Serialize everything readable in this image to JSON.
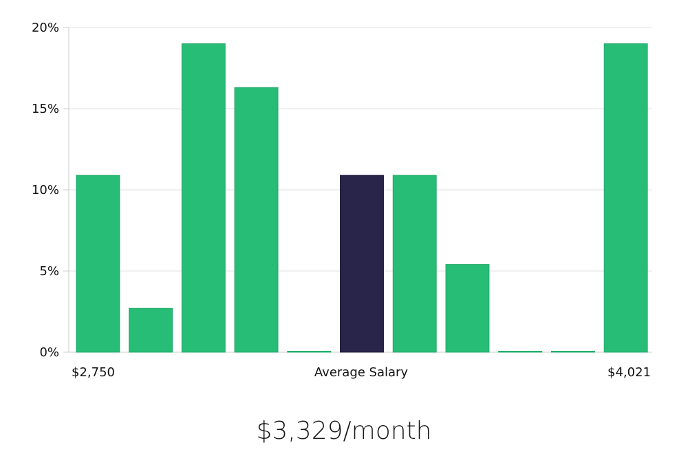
{
  "colors": {
    "bar": "#28bd77",
    "highlight": "#28244a",
    "grid": "#e2e2e2",
    "axis": "#cccccc",
    "text": "#111111"
  },
  "chart_data": {
    "type": "bar",
    "ylim": [
      0,
      20
    ],
    "yticks": [
      0,
      5,
      10,
      15,
      20
    ],
    "ytick_labels": [
      "0%",
      "5%",
      "10%",
      "15%",
      "20%"
    ],
    "grid": true,
    "values": [
      10.9,
      2.7,
      19.0,
      16.3,
      0,
      10.9,
      10.9,
      5.4,
      0,
      0,
      19.0
    ],
    "highlight_index": 5,
    "x_labels": {
      "left": "$2,750",
      "center": "Average Salary",
      "right": "$4,021"
    }
  },
  "summary": "$3,329/month"
}
